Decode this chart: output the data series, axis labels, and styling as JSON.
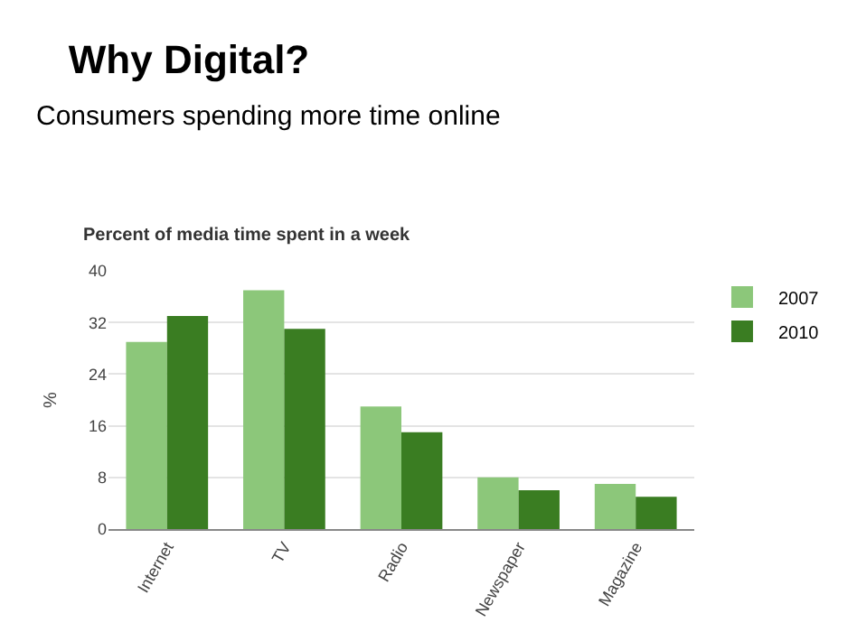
{
  "chart_data": {
    "type": "bar",
    "title": "Why Digital?",
    "subtitle": "Consumers spending more time online",
    "annotations": [
      "Percent of media time spent in a week"
    ],
    "ylabel": "%",
    "categories": [
      "Internet",
      "TV",
      "Radio",
      "Newspaper",
      "Magazine"
    ],
    "series": [
      {
        "name": "2007",
        "color": "#8cc77a",
        "values": [
          29,
          37,
          19,
          8,
          7
        ]
      },
      {
        "name": "2010",
        "color": "#3a7d22",
        "values": [
          33,
          31,
          15,
          6,
          5
        ]
      }
    ],
    "ylim": [
      0,
      40
    ],
    "yticks": [
      0,
      8,
      16,
      24,
      32,
      40
    ],
    "grid": "y",
    "legend": "top right"
  }
}
